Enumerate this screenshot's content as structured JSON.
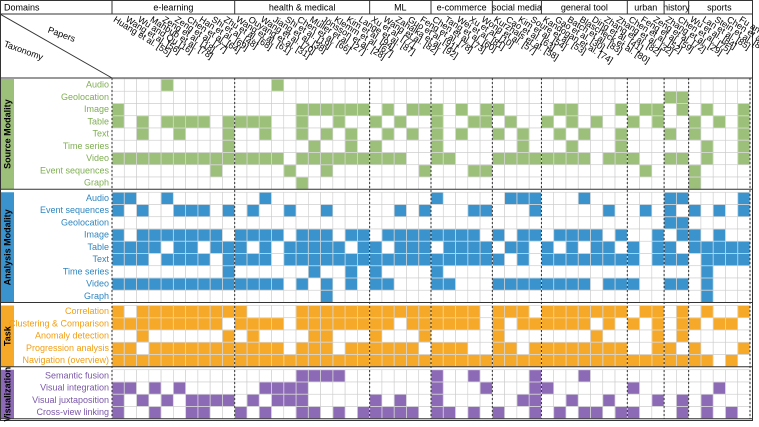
{
  "header": {
    "domains_label": "Domains",
    "papers_label": "Papers",
    "taxonomy_label": "Taxonomy"
  },
  "domains": [
    {
      "name": "e-learning",
      "count": 10
    },
    {
      "name": "health & medical",
      "count": 11
    },
    {
      "name": "ML",
      "count": 5
    },
    {
      "name": "e-commerce",
      "count": 5
    },
    {
      "name": "social media",
      "count": 4
    },
    {
      "name": "general tool",
      "count": 7
    },
    {
      "name": "urban",
      "count": 3
    },
    {
      "name": "history",
      "count": 2
    },
    {
      "name": "sports",
      "count": 5
    }
  ],
  "papers": [
    "Huang et al. [55]",
    "Wang et al. [56]",
    "Wu and Qu [16]",
    "Mahbub et al. [78]",
    "Zeng et al. [18]",
    "Zeng et al. [77]",
    "Chen et al. [64]",
    "Han et al. [69]",
    "Shi et al. [48]",
    "Zhu et al. [68]",
    "Wang et al. [61]",
    "Ouyang et al. [31]",
    "Wang et al. [70]",
    "Jiang et al. [38]",
    "Shi et al. [19]",
    "Chen et al. [66]",
    "Müller et al. [27]",
    "Jönsson et al. [28]",
    "Klemm et al. [67]",
    "Kim et al. [94]",
    "Lange et al. [87]",
    "Xu et al. [77]",
    "Wang et al. [82]",
    "Zahálka et al. [92]",
    "Guo et al. [91]",
    "Feng et al. [78]",
    "Chen et al. [73]",
    "Tang et al. [60]",
    "Wei et al. [81]",
    "Xu et al. [10]",
    "Wong et al. [57]",
    "Kurzhals et al. [58]",
    "Cao et al. [63]",
    "Kim et al. [54]",
    "Soure et al. [53]",
    "Kandogan et al. [74]",
    "Gao et al. [30]",
    "Batch et al. [83]",
    "Blascheck et al. [80]",
    "Ding et al. [41]",
    "Zhang et al. [82]",
    "Zhang et al. [32]",
    "Chen et al. [52]",
    "Feng et al. [59]",
    "Zeng et al. [72]",
    "Zhang et al. [29]",
    "Chen et al. [75]",
    "Wu et al. [84]",
    "Lan et al. [85]",
    "Stein et al. [86]",
    "Chen et al. [65]",
    "Fu and Stasko [42]"
  ],
  "groups": [
    {
      "name": "Source Modality",
      "color": "#9cc07a",
      "label_color": "#7fae52",
      "rows": [
        {
          "label": "Audio",
          "marked": [
            4,
            13
          ]
        },
        {
          "label": "Geolocation",
          "marked": [
            45,
            46
          ]
        },
        {
          "label": "Image",
          "marked": [
            0,
            15,
            16,
            17,
            18,
            19,
            20,
            22,
            24,
            25,
            26,
            28,
            30,
            31,
            36,
            37,
            41,
            43,
            44,
            46,
            48,
            51
          ]
        },
        {
          "label": "Table",
          "marked": [
            0,
            2,
            4,
            5,
            6,
            7,
            9,
            10,
            11,
            12,
            15,
            18,
            21,
            23,
            26,
            29,
            30,
            32,
            35,
            37,
            39,
            42,
            44,
            47,
            49,
            51
          ]
        },
        {
          "label": "Text",
          "marked": [
            2,
            5,
            9,
            12,
            15,
            17,
            19,
            22,
            24,
            26,
            28,
            31,
            33,
            36,
            38,
            41,
            45,
            47,
            51
          ]
        },
        {
          "label": "Time series",
          "marked": [
            9,
            16,
            19,
            21,
            26,
            33,
            37,
            41,
            48,
            51
          ]
        },
        {
          "label": "Video",
          "marked": [
            0,
            1,
            2,
            3,
            4,
            5,
            6,
            7,
            8,
            9,
            10,
            11,
            12,
            13,
            15,
            16,
            17,
            18,
            19,
            20,
            21,
            22,
            23,
            26,
            27,
            31,
            32,
            33,
            34,
            35,
            36,
            37,
            38,
            40,
            41,
            42,
            45,
            46,
            48,
            51
          ]
        },
        {
          "label": "Event sequences",
          "marked": [
            8,
            14,
            17,
            25,
            29,
            30,
            43,
            47
          ]
        },
        {
          "label": "Graph",
          "marked": [
            15,
            47
          ]
        }
      ]
    },
    {
      "name": "Analysis Modality",
      "color": "#3a93cc",
      "label_color": "#2f86c0",
      "rows": [
        {
          "label": "Audio",
          "marked": [
            0,
            1,
            4,
            12,
            26,
            32,
            33,
            34,
            38,
            45,
            46,
            51
          ]
        },
        {
          "label": "Event sequences",
          "marked": [
            0,
            2,
            5,
            6,
            7,
            9,
            11,
            14,
            17,
            23,
            25,
            29,
            30,
            34,
            40,
            43,
            45,
            47,
            49,
            51
          ]
        },
        {
          "label": "Geolocation",
          "marked": [
            45,
            46
          ]
        },
        {
          "label": "Image",
          "marked": [
            0,
            2,
            3,
            4,
            5,
            6,
            7,
            8,
            10,
            11,
            12,
            13,
            15,
            16,
            17,
            19,
            20,
            22,
            23,
            24,
            25,
            26,
            27,
            28,
            29,
            31,
            33,
            34,
            36,
            37,
            38,
            39,
            41,
            44,
            46,
            47,
            49
          ]
        },
        {
          "label": "Table",
          "marked": [
            0,
            1,
            2,
            3,
            5,
            6,
            8,
            9,
            10,
            12,
            14,
            15,
            16,
            17,
            18,
            20,
            21,
            23,
            24,
            25,
            27,
            28,
            29,
            30,
            32,
            33,
            35,
            37,
            39,
            40,
            42,
            44,
            45,
            47,
            48,
            49,
            50,
            51
          ]
        },
        {
          "label": "Text",
          "marked": [
            0,
            1,
            2,
            4,
            5,
            6,
            7,
            9,
            10,
            11,
            12,
            14,
            15,
            16,
            17,
            18,
            19,
            20,
            21,
            22,
            23,
            24,
            25,
            26,
            27,
            28,
            29,
            30,
            31,
            33,
            35,
            36,
            37,
            38,
            39,
            40,
            41,
            42,
            44,
            45,
            46,
            48,
            49,
            50,
            51
          ]
        },
        {
          "label": "Time series",
          "marked": [
            9,
            16,
            19,
            21,
            26,
            48
          ]
        },
        {
          "label": "Video",
          "marked": [
            0,
            1,
            2,
            3,
            4,
            5,
            6,
            7,
            8,
            9,
            10,
            11,
            12,
            13,
            15,
            17,
            19,
            21,
            22,
            26,
            27,
            31,
            32,
            33,
            34,
            35,
            36,
            37,
            38,
            40,
            41,
            42,
            45,
            46,
            48
          ]
        },
        {
          "label": "Graph",
          "marked": [
            17,
            48
          ]
        }
      ]
    },
    {
      "name": "Task",
      "color": "#f6a928",
      "label_color": "#f29e12",
      "rows": [
        {
          "label": "Correlation",
          "marked": [
            0,
            2,
            3,
            4,
            5,
            6,
            7,
            8,
            9,
            10,
            15,
            16,
            17,
            18,
            19,
            20,
            21,
            22,
            23,
            24,
            25,
            26,
            27,
            28,
            29,
            31,
            32,
            33,
            35,
            36,
            37,
            38,
            39,
            40,
            41,
            43,
            44,
            46,
            48,
            51
          ]
        },
        {
          "label": "Clustering & Comparison",
          "marked": [
            0,
            1,
            2,
            3,
            4,
            5,
            6,
            7,
            8,
            10,
            11,
            12,
            13,
            15,
            16,
            17,
            18,
            19,
            20,
            21,
            22,
            24,
            25,
            26,
            27,
            28,
            29,
            31,
            33,
            34,
            35,
            36,
            37,
            38,
            40,
            42,
            44,
            46,
            47,
            49,
            50
          ]
        },
        {
          "label": "Anomaly detection",
          "marked": [
            2,
            9,
            11,
            16,
            17,
            21,
            25,
            31,
            39,
            44,
            46
          ]
        },
        {
          "label": "Progression analysis",
          "marked": [
            0,
            1,
            3,
            4,
            5,
            6,
            7,
            8,
            9,
            10,
            11,
            12,
            13,
            15,
            16,
            17,
            19,
            20,
            21,
            22,
            23,
            24,
            26,
            27,
            28,
            31,
            32,
            34,
            35,
            36,
            37,
            38,
            39,
            40,
            41,
            44,
            45,
            47,
            51
          ]
        },
        {
          "label": "Navigation (overview)",
          "marked": [
            0,
            1,
            2,
            3,
            4,
            5,
            6,
            7,
            8,
            9,
            10,
            11,
            12,
            13,
            14,
            15,
            16,
            17,
            18,
            19,
            20,
            21,
            22,
            23,
            24,
            25,
            26,
            27,
            28,
            29,
            30,
            31,
            32,
            33,
            34,
            35,
            36,
            37,
            38,
            39,
            40,
            41,
            42,
            43,
            44,
            45,
            46,
            47,
            48,
            50
          ]
        }
      ]
    },
    {
      "name": "Visualization",
      "color": "#8d6ab5",
      "label_color": "#7b57a8",
      "rows": [
        {
          "label": "Semantic fusion",
          "marked": [
            15,
            16,
            17,
            18,
            26,
            29,
            34,
            38
          ]
        },
        {
          "label": "Visual integration",
          "marked": [
            0,
            1,
            3,
            5,
            12,
            13,
            14,
            15,
            26,
            30,
            34,
            35,
            42,
            49
          ]
        },
        {
          "label": "Visual juxtaposition",
          "marked": [
            0,
            2,
            4,
            6,
            7,
            8,
            9,
            11,
            13,
            14,
            15,
            21,
            23,
            26,
            33,
            34,
            37,
            40,
            44,
            46,
            48
          ]
        },
        {
          "label": "Cross-view linking",
          "marked": [
            0,
            3,
            6,
            7,
            10,
            12,
            15,
            16,
            18,
            20,
            21,
            22,
            23,
            24,
            26,
            27,
            29,
            31,
            34,
            36,
            38,
            39,
            41,
            42,
            46,
            48,
            50
          ]
        }
      ]
    }
  ]
}
